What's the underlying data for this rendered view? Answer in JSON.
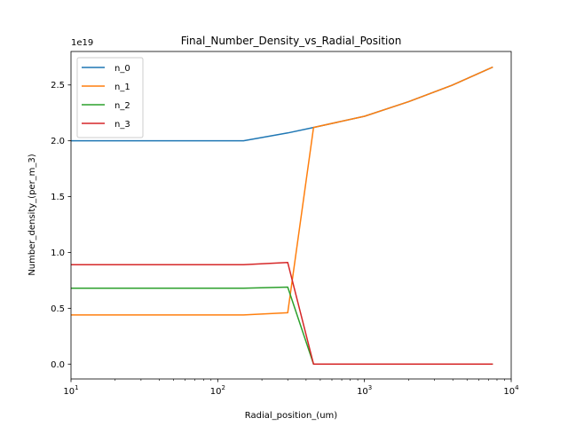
{
  "chart_data": {
    "type": "line",
    "title": "Final_Number_Density_vs_Radial_Position",
    "xlabel": "Radial_position_(um)",
    "ylabel": "Number_density_(per_m_3)",
    "xscale": "log",
    "xlim": [
      10,
      10000
    ],
    "ylim": [
      -0.133,
      2.8
    ],
    "y_offset_label": "1e19",
    "x_ticks": [
      {
        "value": 10,
        "base": "10",
        "exp": "1"
      },
      {
        "value": 100,
        "base": "10",
        "exp": "2"
      },
      {
        "value": 1000,
        "base": "10",
        "exp": "3"
      },
      {
        "value": 10000,
        "base": "10",
        "exp": "4"
      }
    ],
    "y_ticks": [
      {
        "value": 0.0,
        "label": "0.0"
      },
      {
        "value": 0.5,
        "label": "0.5"
      },
      {
        "value": 1.0,
        "label": "1.0"
      },
      {
        "value": 1.5,
        "label": "1.5"
      },
      {
        "value": 2.0,
        "label": "2.0"
      },
      {
        "value": 2.5,
        "label": "2.5"
      }
    ],
    "legend_position": "top-left",
    "grid": false,
    "series": [
      {
        "name": "n_0",
        "color": "#1f77b4",
        "x": [
          10,
          150,
          300,
          450,
          1000,
          2000,
          4000,
          7500
        ],
        "y": [
          2.0,
          2.0,
          2.07,
          2.12,
          2.22,
          2.35,
          2.5,
          2.66
        ]
      },
      {
        "name": "n_1",
        "color": "#ff7f0e",
        "x": [
          10,
          150,
          300,
          450,
          1000,
          2000,
          4000,
          7500
        ],
        "y": [
          0.44,
          0.44,
          0.46,
          2.12,
          2.22,
          2.35,
          2.5,
          2.66
        ]
      },
      {
        "name": "n_2",
        "color": "#2ca02c",
        "x": [
          10,
          150,
          300,
          450,
          1000,
          2000,
          4000,
          7500
        ],
        "y": [
          0.68,
          0.68,
          0.69,
          0.0,
          0.0,
          0.0,
          0.0,
          0.0
        ]
      },
      {
        "name": "n_3",
        "color": "#d62728",
        "x": [
          10,
          150,
          300,
          450,
          1000,
          2000,
          4000,
          7500
        ],
        "y": [
          0.89,
          0.89,
          0.91,
          0.0,
          0.0,
          0.0,
          0.0,
          0.0
        ]
      }
    ]
  }
}
